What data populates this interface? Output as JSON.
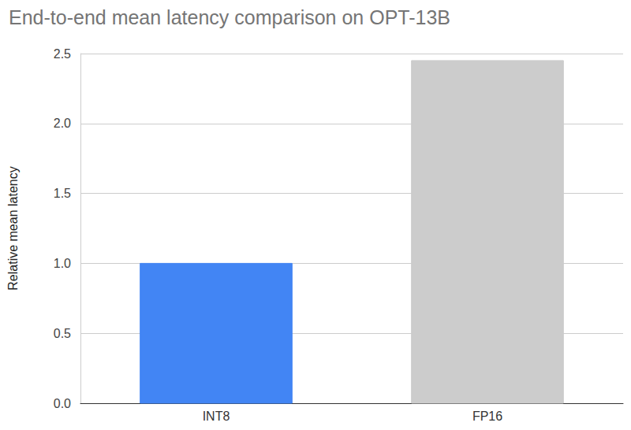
{
  "chart_data": {
    "type": "bar",
    "title": "End-to-end mean latency comparison on OPT-13B",
    "y_label": "Relative mean latency",
    "categories": [
      "INT8",
      "FP16"
    ],
    "values": [
      1.0,
      2.45
    ],
    "colors": [
      "#4285f4",
      "#cccccc"
    ],
    "ylim": [
      0,
      2.5
    ],
    "yticks": [
      {
        "value": 0,
        "label": "0.0"
      },
      0.5,
      {
        "value": 1,
        "label": "1.0"
      },
      1.5,
      {
        "value": 2,
        "label": "2.0"
      },
      2.5
    ],
    "grid": true
  }
}
